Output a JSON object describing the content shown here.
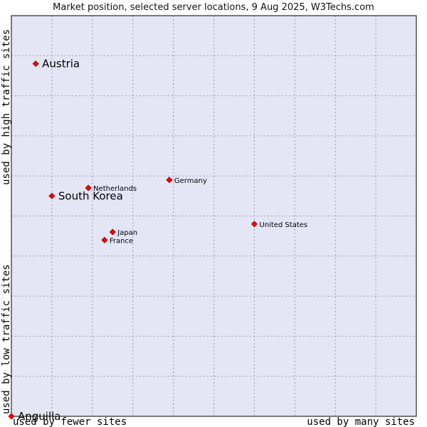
{
  "chart_data": {
    "type": "scatter",
    "title": "Market position, selected server locations, 9 Aug 2025, W3Techs.com",
    "x_axis": {
      "low_label": "used by fewer sites",
      "high_label": "used by many sites",
      "range": [
        0,
        10
      ],
      "grid_step": 1
    },
    "y_axis": {
      "low_label": "used by low traffic sites",
      "high_label": "used by high traffic sites",
      "range": [
        0,
        10
      ],
      "grid_step": 1
    },
    "grid": true,
    "points": [
      {
        "label": "Austria",
        "x": 0.6,
        "y": 8.8,
        "emphasis": true
      },
      {
        "label": "South Korea",
        "x": 1.0,
        "y": 5.5,
        "emphasis": true
      },
      {
        "label": "Netherlands",
        "x": 1.9,
        "y": 5.7,
        "emphasis": false
      },
      {
        "label": "Germany",
        "x": 3.9,
        "y": 5.9,
        "emphasis": false
      },
      {
        "label": "United States",
        "x": 6.0,
        "y": 4.8,
        "emphasis": false
      },
      {
        "label": "Japan",
        "x": 2.5,
        "y": 4.6,
        "emphasis": false
      },
      {
        "label": "France",
        "x": 2.3,
        "y": 4.4,
        "emphasis": false
      },
      {
        "label": "Anguilla",
        "x": 0.0,
        "y": 0.0,
        "emphasis": true
      }
    ]
  },
  "colors": {
    "plot_bg": "#e4e6f6",
    "grid": "#9a9ab2",
    "marker": "#ee0000",
    "marker_edge": "#aa0000"
  }
}
